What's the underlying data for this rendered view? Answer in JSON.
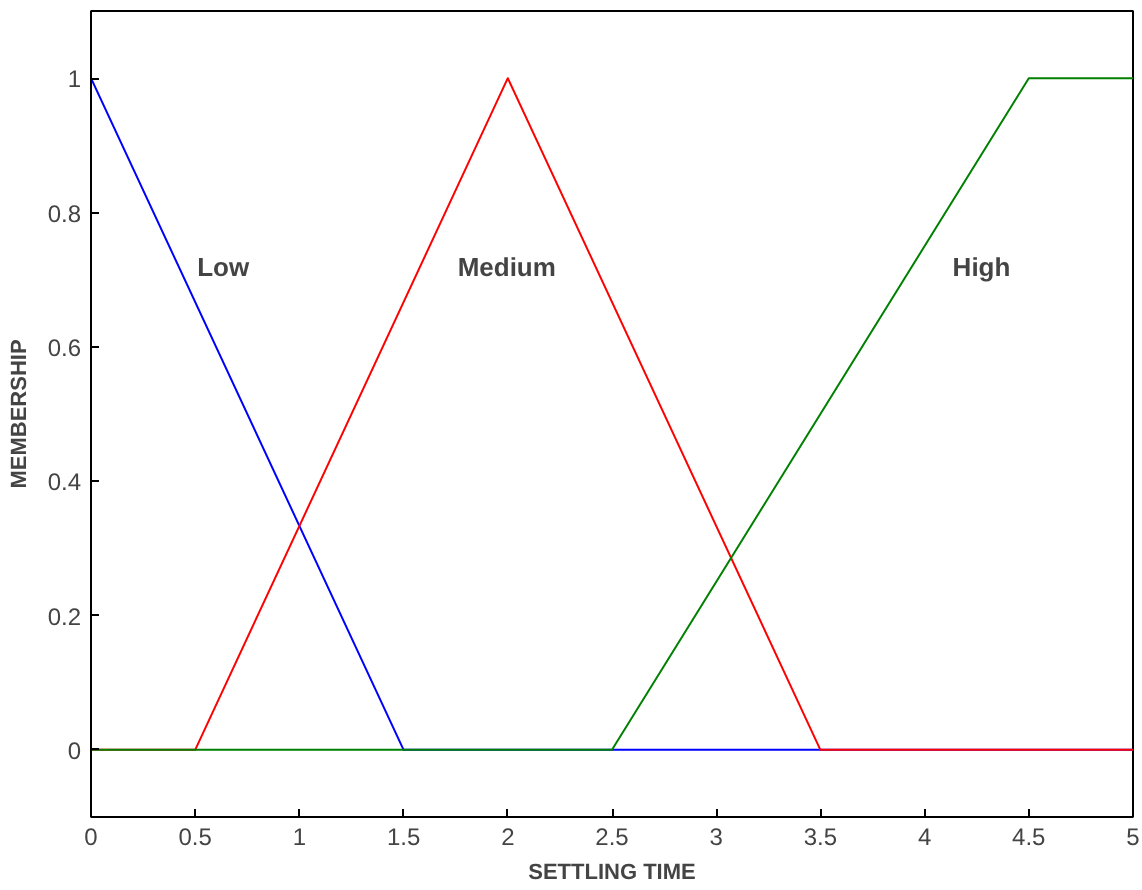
{
  "chart_data": {
    "type": "line",
    "xlabel": "SETTLING TIME",
    "ylabel": "MEMBERSHIP",
    "xlim": [
      0,
      5
    ],
    "ylim": [
      -0.1,
      1.1
    ],
    "xticks": [
      0,
      0.5,
      1,
      1.5,
      2,
      2.5,
      3,
      3.5,
      4,
      4.5,
      5
    ],
    "yticks": [
      0,
      0.2,
      0.4,
      0.6,
      0.8,
      1
    ],
    "grid": false,
    "legend": false,
    "series": [
      {
        "name": "Low",
        "color": "#0000ff",
        "x": [
          0,
          1.5,
          5
        ],
        "values": [
          1,
          0,
          0
        ]
      },
      {
        "name": "Medium",
        "color": "#ff0000",
        "x": [
          0,
          0.5,
          2,
          3.5,
          5
        ],
        "values": [
          0,
          0,
          1,
          0,
          0
        ]
      },
      {
        "name": "High",
        "color": "#008000",
        "x": [
          0,
          2.5,
          4.5,
          5
        ],
        "values": [
          0,
          0,
          1,
          1
        ]
      }
    ]
  }
}
